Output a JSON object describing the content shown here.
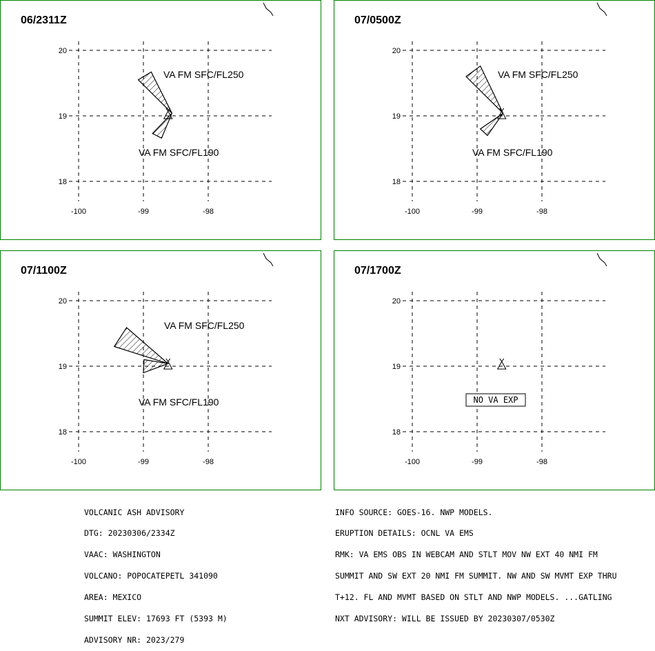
{
  "panels": [
    {
      "time_label": "06/2311Z",
      "layers": [
        {
          "label": "VA FM SFC/FL250",
          "polygon": [
            [
              -98.56,
              19.04
            ],
            [
              -99.08,
              19.55
            ],
            [
              -98.88,
              19.67
            ]
          ]
        },
        {
          "label": "VA FM SFC/FL190",
          "polygon": [
            [
              -98.56,
              19.04
            ],
            [
              -98.72,
              18.66
            ],
            [
              -98.86,
              18.73
            ]
          ]
        }
      ],
      "note": ""
    },
    {
      "time_label": "07/0500Z",
      "layers": [
        {
          "label": "VA FM SFC/FL250",
          "polygon": [
            [
              -98.6,
              19.04
            ],
            [
              -99.17,
              19.6
            ],
            [
              -98.95,
              19.76
            ]
          ]
        },
        {
          "label": "VA FM SFC/FL190",
          "polygon": [
            [
              -98.6,
              19.04
            ],
            [
              -98.84,
              18.7
            ],
            [
              -98.95,
              18.8
            ]
          ]
        }
      ],
      "note": ""
    },
    {
      "time_label": "07/1100Z",
      "layers": [
        {
          "label": "VA FM SFC/FL250",
          "polygon": [
            [
              -98.62,
              19.04
            ],
            [
              -99.45,
              19.3
            ],
            [
              -99.26,
              19.59
            ]
          ]
        },
        {
          "label": "VA FM SFC/FL190",
          "polygon": [
            [
              -98.62,
              19.04
            ],
            [
              -98.99,
              19.1
            ],
            [
              -99.0,
              18.9
            ]
          ]
        }
      ],
      "note": ""
    },
    {
      "time_label": "07/1700Z",
      "layers": [],
      "note": "NO VA EXP"
    }
  ],
  "axes": {
    "lon_ticks": [
      "-100",
      "-99",
      "-98"
    ],
    "lat_ticks": [
      "20",
      "19",
      "18"
    ]
  },
  "summit": {
    "lon": -98.62,
    "lat": 19.02
  },
  "advisory": {
    "title": "VOLCANIC ASH ADVISORY",
    "dtg": "DTG: 20230306/2334Z",
    "vaac": "VAAC: WASHINGTON",
    "volcano": "VOLCANO: POPOCATEPETL 341090",
    "area": "AREA: MEXICO",
    "summit_elev": "SUMMIT ELEV: 17693 FT (5393 M)",
    "advisory_nr": "ADVISORY NR: 2023/279"
  },
  "details": {
    "info_source": "INFO SOURCE: GOES-16. NWP MODELS.",
    "eruption_details": "ERUPTION DETAILS: OCNL VA EMS",
    "rmk_1": "RMK: VA EMS OBS IN WEBCAM AND STLT MOV NW EXT 40 NMI FM",
    "rmk_2": "SUMMIT AND SW EXT 20 NMI FM SUMMIT. NW AND SW MVMT EXP THRU",
    "rmk_3": "T+12. FL AND MVMT BASED ON STLT AND NWP MODELS. ...GATLING",
    "next_advisory": "NXT ADVISORY: WILL BE ISSUED BY 20230307/0530Z"
  },
  "colors": {
    "frame": "#008000",
    "grid": "#000000",
    "ash_fill_hatch": "#000000"
  }
}
